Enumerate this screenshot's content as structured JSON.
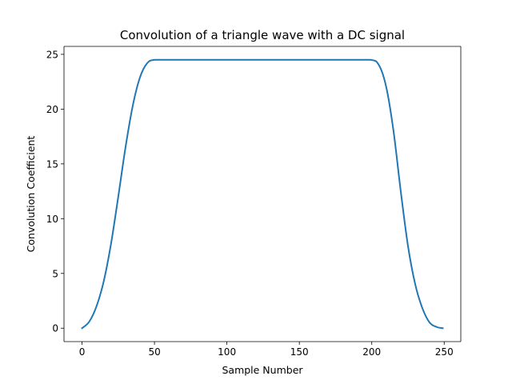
{
  "chart_data": {
    "type": "line",
    "title": "Convolution of a triangle wave with a DC signal",
    "xlabel": "Sample Number",
    "ylabel": "Convolution Coefficient",
    "xlim": [
      -12.45,
      261.45
    ],
    "ylim": [
      -1.225,
      25.725
    ],
    "x_ticks": [
      0,
      50,
      100,
      150,
      200,
      250
    ],
    "y_ticks": [
      0,
      5,
      10,
      15,
      20,
      25
    ],
    "x_tick_labels": [
      "0",
      "50",
      "100",
      "150",
      "200",
      "250"
    ],
    "y_tick_labels": [
      "0",
      "5",
      "10",
      "15",
      "20",
      "25"
    ],
    "grid": false,
    "legend": "none",
    "series": [
      {
        "color": "#1f77b4",
        "x": [
          0,
          5,
          10,
          15,
          20,
          25,
          30,
          35,
          40,
          45,
          50,
          60,
          80,
          100,
          120,
          140,
          160,
          180,
          199,
          205,
          210,
          215,
          220,
          225,
          230,
          235,
          240,
          245,
          249
        ],
        "values": [
          0,
          0.6,
          2.0,
          4.3,
          7.7,
          12.0,
          16.5,
          20.3,
          22.9,
          24.2,
          24.5,
          24.5,
          24.5,
          24.5,
          24.5,
          24.5,
          24.5,
          24.5,
          24.5,
          24.0,
          22.0,
          18.0,
          12.5,
          7.5,
          4.0,
          1.8,
          0.5,
          0.1,
          0
        ]
      }
    ]
  }
}
